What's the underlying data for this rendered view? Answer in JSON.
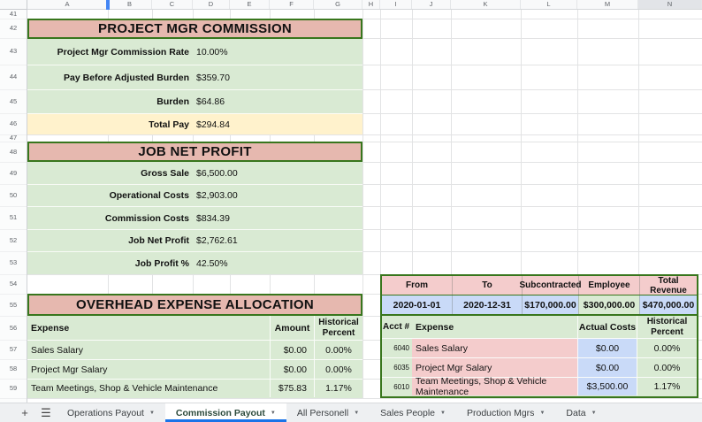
{
  "colors": {
    "section_header_pink": "#e6b8af",
    "row_pink": "#f4cccc",
    "green_fill": "#d9ead3",
    "yellow_fill": "#fff2cc",
    "blue_fill": "#c9daf8",
    "table_border_green": "#38761d",
    "active_tab_underline": "#1a73e8",
    "frozen_divider_blue": "#4285f4"
  },
  "grid": {
    "column_headers": [
      "A",
      "B",
      "C",
      "D",
      "E",
      "F",
      "G",
      "H",
      "I",
      "J",
      "K",
      "L",
      "M",
      "N"
    ],
    "row_numbers": [
      "41",
      "42",
      "43",
      "44",
      "45",
      "46",
      "47",
      "48",
      "49",
      "50",
      "51",
      "52",
      "53",
      "54",
      "55",
      "56",
      "57",
      "58",
      "59"
    ]
  },
  "commission_section": {
    "title": "PROJECT MGR COMMISSION",
    "rows": [
      {
        "label": "Project Mgr Commission Rate",
        "value": "10.00%"
      },
      {
        "label": "Pay Before Adjusted Burden",
        "value": "$359.70"
      },
      {
        "label": "Burden",
        "value": "$64.86"
      },
      {
        "label": "Total Pay",
        "value": "$294.84"
      }
    ]
  },
  "job_net_profit_section": {
    "title": "JOB NET PROFIT",
    "rows": [
      {
        "label": "Gross Sale",
        "value": "$6,500.00"
      },
      {
        "label": "Operational Costs",
        "value": "$2,903.00"
      },
      {
        "label": "Commission Costs",
        "value": "$834.39"
      },
      {
        "label": "Job Net Profit",
        "value": "$2,762.61"
      },
      {
        "label": "Job Profit %",
        "value": "42.50%"
      }
    ]
  },
  "overhead_section": {
    "title": "OVERHEAD EXPENSE ALLOCATION",
    "columns": {
      "expense": "Expense",
      "amount": "Amount",
      "historical_percent": "Historical Percent"
    },
    "rows": [
      {
        "expense": "Sales Salary",
        "amount": "$0.00",
        "historical_percent": "0.00%"
      },
      {
        "expense": "Project Mgr Salary",
        "amount": "$0.00",
        "historical_percent": "0.00%"
      },
      {
        "expense": "Team Meetings, Shop & Vehicle Maintenance",
        "amount": "$75.83",
        "historical_percent": "1.17%"
      }
    ]
  },
  "revenue_table": {
    "columns": {
      "from": "From",
      "to": "To",
      "subcontracted": "Subcontracted",
      "employee": "Employee",
      "total_revenue": "Total Revenue"
    },
    "values": {
      "from": "2020-01-01",
      "to": "2020-12-31",
      "subcontracted": "$170,000.00",
      "employee": "$300,000.00",
      "total_revenue": "$470,000.00"
    }
  },
  "actuals_table": {
    "columns": {
      "acct": "Acct #",
      "expense": "Expense",
      "actual_costs": "Actual Costs",
      "historical_percent": "Historical Percent"
    },
    "rows": [
      {
        "acct": "6040",
        "expense": "Sales Salary",
        "actual_costs": "$0.00",
        "historical_percent": "0.00%"
      },
      {
        "acct": "6035",
        "expense": "Project Mgr Salary",
        "actual_costs": "$0.00",
        "historical_percent": "0.00%"
      },
      {
        "acct": "6010",
        "expense": "Team Meetings, Shop & Vehicle Maintenance",
        "actual_costs": "$3,500.00",
        "historical_percent": "1.17%"
      }
    ]
  },
  "sheet_tabs": {
    "tabs": [
      {
        "label": "Operations Payout",
        "active": false
      },
      {
        "label": "Commission Payout",
        "active": true
      },
      {
        "label": "All Personell",
        "active": false
      },
      {
        "label": "Sales People",
        "active": false
      },
      {
        "label": "Production Mgrs",
        "active": false
      },
      {
        "label": "Data",
        "active": false
      }
    ],
    "add_button": "+",
    "dropdown_arrow": "▼"
  }
}
